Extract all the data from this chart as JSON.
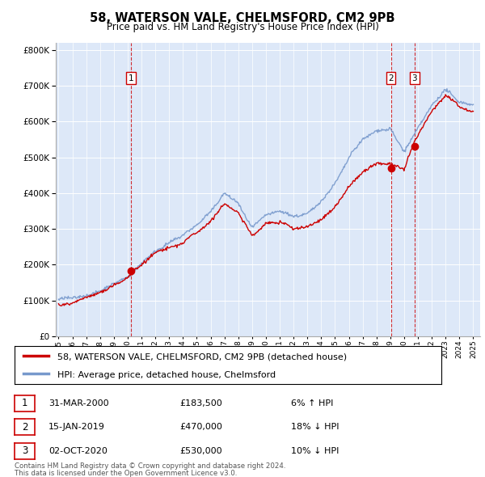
{
  "title": "58, WATERSON VALE, CHELMSFORD, CM2 9PB",
  "subtitle": "Price paid vs. HM Land Registry's House Price Index (HPI)",
  "footer1": "Contains HM Land Registry data © Crown copyright and database right 2024.",
  "footer2": "This data is licensed under the Open Government Licence v3.0.",
  "legend_line1": "58, WATERSON VALE, CHELMSFORD, CM2 9PB (detached house)",
  "legend_line2": "HPI: Average price, detached house, Chelmsford",
  "transactions": [
    {
      "num": "1",
      "date": "31-MAR-2000",
      "price": "£183,500",
      "change": "6% ↑ HPI",
      "x_year": 2000.25
    },
    {
      "num": "2",
      "date": "15-JAN-2019",
      "price": "£470,000",
      "change": "18% ↓ HPI",
      "x_year": 2019.04
    },
    {
      "num": "3",
      "date": "02-OCT-2020",
      "price": "£530,000",
      "change": "10% ↓ HPI",
      "x_year": 2020.75
    }
  ],
  "transaction_prices": [
    183500,
    470000,
    530000
  ],
  "red_color": "#cc0000",
  "blue_color": "#7799cc",
  "ylim": [
    0,
    820000
  ],
  "xlim_start": 1994.8,
  "xlim_end": 2025.5
}
